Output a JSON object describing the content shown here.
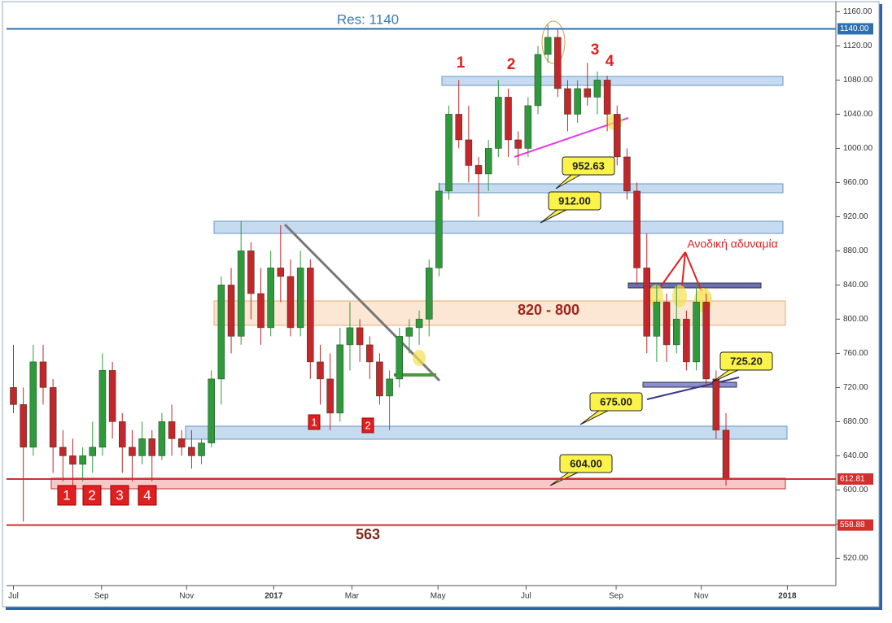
{
  "chart_data": {
    "type": "candlestick",
    "open": [
      720,
      700,
      650,
      750,
      720,
      650,
      640,
      630,
      640,
      650,
      740,
      680,
      650,
      640,
      660,
      640,
      680,
      660,
      650,
      640,
      655,
      730,
      840,
      780,
      880,
      830,
      790,
      860,
      850,
      790,
      860,
      750,
      730,
      690,
      770,
      790,
      770,
      750,
      710,
      730,
      780,
      790,
      800,
      860,
      950,
      1040,
      1010,
      980,
      970,
      1000,
      1060,
      1010,
      1000,
      1050,
      1110,
      1130,
      1070,
      1040,
      1070,
      1060,
      1080,
      1040,
      990,
      950,
      860,
      780,
      820,
      770,
      800,
      750,
      820,
      730,
      670
    ],
    "high": [
      770,
      720,
      770,
      770,
      730,
      670,
      660,
      650,
      680,
      760,
      750,
      690,
      670,
      680,
      670,
      690,
      700,
      670,
      670,
      660,
      740,
      850,
      860,
      915,
      890,
      860,
      880,
      910,
      870,
      880,
      870,
      770,
      760,
      790,
      820,
      800,
      780,
      760,
      740,
      790,
      800,
      810,
      870,
      960,
      1050,
      1080,
      1050,
      990,
      1010,
      1080,
      1070,
      1020,
      1060,
      1120,
      1145,
      1140,
      1080,
      1080,
      1100,
      1090,
      1085,
      1050,
      1000,
      960,
      900,
      840,
      830,
      840,
      810,
      840,
      830,
      740,
      690
    ],
    "low": [
      690,
      563,
      640,
      700,
      620,
      610,
      605,
      610,
      620,
      640,
      660,
      620,
      610,
      630,
      610,
      635,
      640,
      640,
      625,
      630,
      650,
      700,
      760,
      770,
      800,
      770,
      780,
      820,
      780,
      780,
      730,
      700,
      670,
      680,
      740,
      750,
      730,
      700,
      670,
      720,
      760,
      770,
      780,
      850,
      940,
      1000,
      960,
      920,
      950,
      990,
      990,
      980,
      990,
      1040,
      1100,
      1060,
      1020,
      1030,
      1050,
      1040,
      1020,
      980,
      940,
      840,
      760,
      750,
      750,
      760,
      740,
      740,
      720,
      660,
      605
    ],
    "close": [
      700,
      650,
      750,
      720,
      650,
      640,
      630,
      640,
      650,
      740,
      680,
      650,
      640,
      660,
      640,
      680,
      660,
      650,
      640,
      655,
      730,
      840,
      780,
      880,
      830,
      790,
      860,
      850,
      790,
      860,
      750,
      730,
      690,
      770,
      790,
      770,
      750,
      710,
      730,
      780,
      790,
      800,
      860,
      950,
      1040,
      1010,
      980,
      970,
      1000,
      1060,
      1010,
      1000,
      1050,
      1110,
      1130,
      1070,
      1040,
      1070,
      1060,
      1080,
      1040,
      990,
      950,
      860,
      780,
      820,
      770,
      800,
      750,
      820,
      730,
      670,
      612.81
    ],
    "up_color": "#2f9a3c",
    "down_color": "#c3262b",
    "xlim": [
      -0.7,
      83.1
    ],
    "ylim": [
      488,
      1169
    ],
    "xticks": [
      {
        "value": 0,
        "label": "Jul"
      },
      {
        "value": 8.9,
        "label": "Sep"
      },
      {
        "value": 17.5,
        "label": "Nov"
      },
      {
        "value": 26.3,
        "label": "2017"
      },
      {
        "value": 34.2,
        "label": "Mar"
      },
      {
        "value": 42.9,
        "label": "May"
      },
      {
        "value": 51.8,
        "label": "Jul"
      },
      {
        "value": 60.9,
        "label": "Sep"
      },
      {
        "value": 69.5,
        "label": "Nov"
      },
      {
        "value": 78.2,
        "label": "2018"
      }
    ],
    "yticks": [
      {
        "value": 520,
        "label": "520.00"
      },
      {
        "value": 560,
        "label": "560.00"
      },
      {
        "value": 600,
        "label": "600.00"
      },
      {
        "value": 640,
        "label": "640.00"
      },
      {
        "value": 680,
        "label": "680.00"
      },
      {
        "value": 720,
        "label": "720.00"
      },
      {
        "value": 760,
        "label": "760.00"
      },
      {
        "value": 800,
        "label": "800.00"
      },
      {
        "value": 840,
        "label": "840.00"
      },
      {
        "value": 880,
        "label": "880.00"
      },
      {
        "value": 920,
        "label": "920.00"
      },
      {
        "value": 960,
        "label": "960.00"
      },
      {
        "value": 1000,
        "label": "1000.00"
      },
      {
        "value": 1040,
        "label": "1040.00"
      },
      {
        "value": 1080,
        "label": "1080.00"
      },
      {
        "value": 1120,
        "label": "1120.00"
      },
      {
        "value": 1160,
        "label": "1160.00"
      }
    ],
    "price_tags": [
      {
        "value": 1140,
        "label": "1140.00",
        "color": "#2f6fb0"
      },
      {
        "value": 612.81,
        "label": "612.81",
        "color": "#d32f2f"
      },
      {
        "value": 558.88,
        "label": "558.88",
        "color": "#d32f2f"
      }
    ],
    "annotations": [
      "Res: 1140",
      "563",
      "820 - 800",
      "Ανοδική αδυναμία",
      "1",
      "2",
      "3",
      "4",
      "1",
      "2",
      "3",
      "4",
      "1",
      "2",
      "952.63",
      "912.00",
      "675.00",
      "604.00",
      "725.20"
    ]
  }
}
